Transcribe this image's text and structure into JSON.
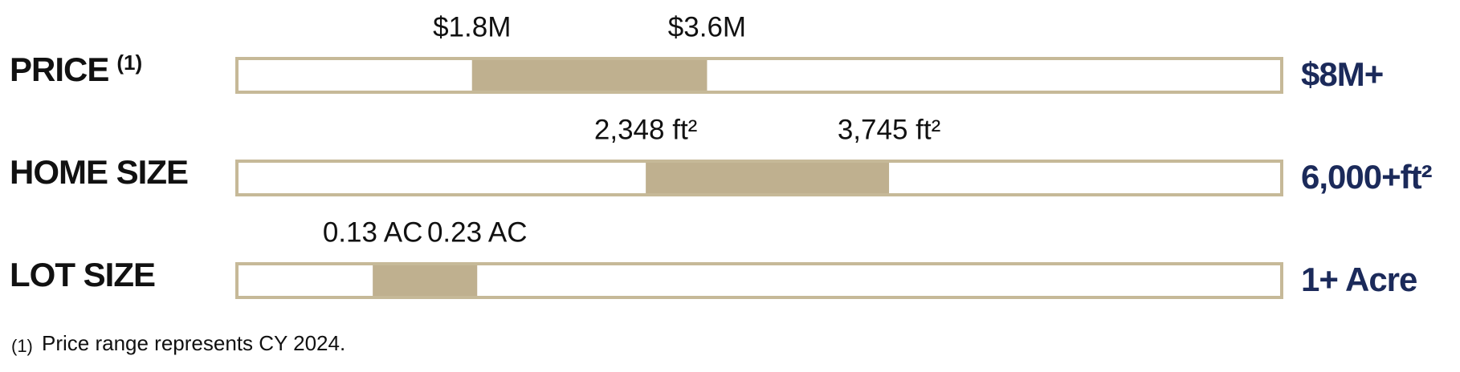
{
  "chart_data": {
    "type": "range",
    "color": "#bfb08f",
    "border_color": "#c6b998",
    "max_color": "#1b2a5a",
    "rows": [
      {
        "label": "PRICE",
        "note": "(1)",
        "low": 1800000,
        "high": 3600000,
        "low_label": "$1.8M",
        "high_label": "$3.6M",
        "max_label": "$8M+",
        "xlim": [
          0,
          8000000
        ]
      },
      {
        "label": "HOME SIZE",
        "low": 2348,
        "high": 3745,
        "low_label": "2,348 ft²",
        "high_label": "3,745 ft²",
        "max_label": "6,000+ft²",
        "xlim": [
          0,
          6000
        ]
      },
      {
        "label": "LOT SIZE",
        "low": 0.13,
        "high": 0.23,
        "low_label": "0.13 AC",
        "high_label": "0.23 AC",
        "max_label": "1+ Acre",
        "xlim": [
          0,
          1
        ]
      }
    ],
    "footnote_mark": "(1)",
    "footnote": "Price range represents CY 2024."
  }
}
